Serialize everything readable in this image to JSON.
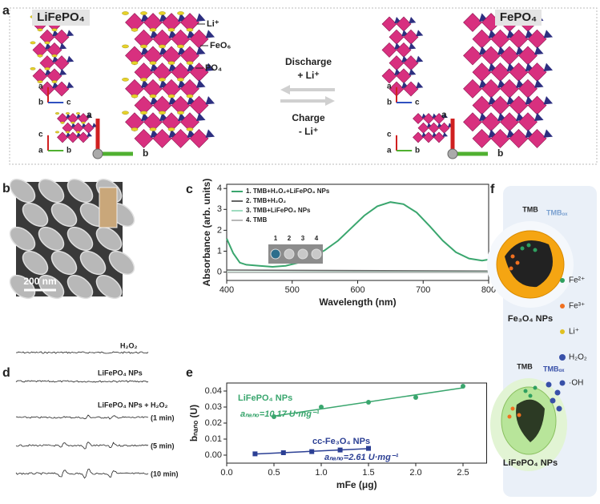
{
  "panel_labels": [
    "a",
    "b",
    "c",
    "d",
    "e",
    "f"
  ],
  "panel_a": {
    "left_title": "LiFePO₄",
    "right_title": "FePO₄",
    "legend": [
      "Li⁺",
      "FeO₆",
      "PO₄"
    ],
    "discharge": "Discharge",
    "discharge_ion": "+ Li⁺",
    "charge": "Charge",
    "charge_ion": "- Li⁺",
    "triads": [
      [
        "a",
        "b",
        "c"
      ],
      [
        "c",
        "a",
        "b"
      ],
      [
        "a",
        "b"
      ],
      [
        "a",
        "b",
        "c"
      ],
      [
        "c",
        "a",
        "b"
      ],
      [
        "a",
        "b"
      ]
    ]
  },
  "panel_b": {
    "scale_bar": "200 nm"
  },
  "panel_d": {
    "labels": [
      "H₂O₂",
      "LiFePO₄ NPs",
      "LiFePO₄ NPs + H₂O₂",
      "(1 min)",
      "(5 min)",
      "(10 min)"
    ]
  },
  "panel_f": {
    "top_reactant": "TMB",
    "top_product": "TMBₒₓ",
    "top_name": "Fe₃O₄ NPs",
    "bottom_reactant": "TMB",
    "bottom_product": "TMBₒₓ",
    "bottom_name": "LiFePO₄ NPs",
    "legend": [
      "Fe²⁺",
      "Fe³⁺",
      "Li⁺",
      "H₂O₂",
      "·OH"
    ]
  },
  "chart_data": [
    {
      "type": "line",
      "xlabel": "Wavelength (nm)",
      "ylabel": "Absorbance (arb. units)",
      "xlim": [
        400,
        800
      ],
      "xticks": [
        400,
        500,
        600,
        700,
        800
      ],
      "ylim": [
        -0.4,
        4.2
      ],
      "yticks": [
        0,
        1,
        2,
        3,
        4
      ],
      "legend": "upper left",
      "inset_labels": [
        "1",
        "2",
        "3",
        "4"
      ],
      "series": [
        {
          "name": "1. TMB+H₂O₂+LiFePO₄ NPs",
          "color": "#3aa66e",
          "x": [
            400,
            410,
            420,
            430,
            450,
            470,
            490,
            510,
            530,
            550,
            570,
            590,
            610,
            630,
            650,
            670,
            690,
            710,
            730,
            750,
            770,
            790,
            800
          ],
          "values": [
            1.6,
            0.9,
            0.45,
            0.35,
            0.3,
            0.25,
            0.3,
            0.45,
            0.7,
            1.05,
            1.5,
            2.1,
            2.7,
            3.15,
            3.35,
            3.25,
            2.85,
            2.2,
            1.5,
            0.95,
            0.65,
            0.55,
            0.6
          ]
        },
        {
          "name": "2. TMB+H₂O₂",
          "color": "#666666",
          "x": [
            400,
            800
          ],
          "values": [
            0.1,
            0.05
          ]
        },
        {
          "name": "3. TMB+LiFePO₄ NPs",
          "color": "#9fdcc0",
          "x": [
            400,
            800
          ],
          "values": [
            0,
            0
          ]
        },
        {
          "name": "4. TMB",
          "color": "#b8b8b8",
          "x": [
            400,
            800
          ],
          "values": [
            -0.02,
            -0.02
          ]
        }
      ]
    },
    {
      "type": "scatter",
      "xlabel": "mFe (μg)",
      "ylabel": "bₙₐₙₒ (U)",
      "xlim": [
        0,
        2.75
      ],
      "xticks": [
        {
          "value": 0,
          "label": "0.0"
        },
        0.5,
        {
          "value": 1,
          "label": "1.0"
        },
        1.5,
        {
          "value": 2,
          "label": "2.0"
        },
        2.5
      ],
      "ylim": [
        -0.005,
        0.045
      ],
      "yticks": [
        {
          "value": 0,
          "label": "0.00"
        },
        0.01,
        0.02,
        0.03,
        0.04
      ],
      "fit": true,
      "series": [
        {
          "name": "LiFePO₄ NPs",
          "color": "#3aa66e",
          "annotation": "aₙₐₙₒ=10.17 U·mg⁻¹",
          "x": [
            0.5,
            1.0,
            1.5,
            2.0,
            2.5
          ],
          "values": [
            0.024,
            0.03,
            0.033,
            0.036,
            0.043
          ]
        },
        {
          "name": "cc-Fe₃O₄ NPs",
          "color": "#2b3f94",
          "annotation": "aₙₐₙₒ=2.61 U·mg⁻¹",
          "x": [
            0.3,
            0.6,
            0.9,
            1.2,
            1.5
          ],
          "values": [
            0.0008,
            0.0015,
            0.0022,
            0.0032,
            0.0042
          ]
        }
      ]
    }
  ]
}
